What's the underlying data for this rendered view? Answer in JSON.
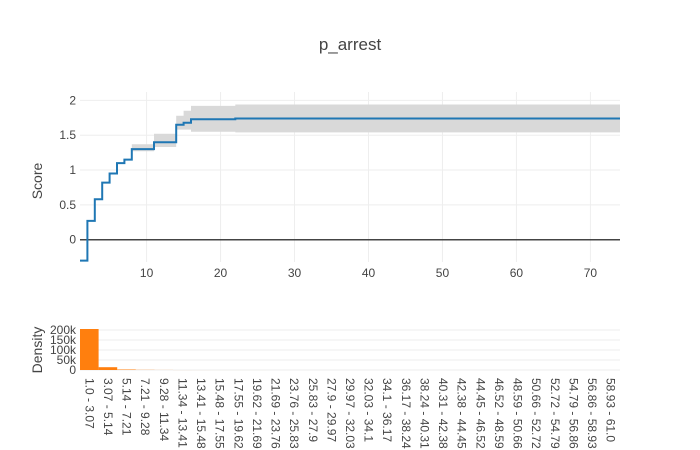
{
  "chart_data": [
    {
      "type": "line",
      "title": "p_arrest",
      "xlabel": "",
      "ylabel": "Score",
      "xlim": [
        1,
        74
      ],
      "ylim": [
        -0.32,
        2.12
      ],
      "x_ticks": [
        10,
        20,
        30,
        40,
        50,
        60,
        70
      ],
      "y_ticks": [
        0,
        0.5,
        1,
        1.5,
        2
      ],
      "y_tick_labels": [
        "0",
        "0.5",
        "1",
        "1.5",
        "2"
      ],
      "grid": true,
      "colors": {
        "line": "#1f77b4",
        "band": "#d9d9d9",
        "zero_line": "#444444"
      },
      "series": [
        {
          "step": "post",
          "x": [
            1,
            2,
            3,
            4,
            5,
            6,
            7,
            8,
            11,
            14,
            15,
            16,
            22,
            74
          ],
          "y": [
            -0.3,
            0.27,
            0.58,
            0.82,
            0.95,
            1.1,
            1.15,
            1.3,
            1.4,
            1.65,
            1.68,
            1.73,
            1.74,
            1.74
          ],
          "lower": [
            -0.3,
            0.27,
            0.58,
            0.82,
            0.95,
            1.1,
            1.15,
            1.27,
            1.33,
            1.58,
            1.58,
            1.55,
            1.54,
            1.54
          ],
          "upper": [
            -0.3,
            0.27,
            0.58,
            0.82,
            0.95,
            1.1,
            1.15,
            1.37,
            1.52,
            1.78,
            1.85,
            1.92,
            1.94,
            1.94
          ]
        }
      ]
    },
    {
      "type": "bar",
      "xlabel": "",
      "ylabel": "Density",
      "ylim": [
        0,
        220000
      ],
      "y_ticks": [
        0,
        50000,
        100000,
        150000,
        200000
      ],
      "y_tick_labels": [
        "0",
        "50k",
        "100k",
        "150k",
        "200k"
      ],
      "colors": {
        "bar": "#ff7f0e"
      },
      "categories": [
        "1.0 - 3.07",
        "3.07 - 5.14",
        "5.14 - 7.21",
        "7.21 - 9.28",
        "9.28 - 11.34",
        "11.34 - 13.41",
        "13.41 - 15.48",
        "15.48 - 17.55",
        "17.55 - 19.62",
        "19.62 - 21.69",
        "21.69 - 23.76",
        "23.76 - 25.83",
        "25.83 - 27.9",
        "27.9 - 29.97",
        "29.97 - 32.03",
        "32.03 - 34.1",
        "34.1 - 36.17",
        "36.17 - 38.24",
        "38.24 - 40.31",
        "40.31 - 42.38",
        "42.38 - 44.45",
        "44.45 - 46.52",
        "46.52 - 48.59",
        "48.59 - 50.66",
        "50.66 - 52.72",
        "52.72 - 54.79",
        "54.79 - 56.86",
        "56.86 - 58.93",
        "58.93 - 61.0"
      ],
      "values": [
        205000,
        14000,
        2500,
        800,
        300,
        150,
        100,
        60,
        40,
        30,
        20,
        15,
        10,
        8,
        6,
        5,
        4,
        3,
        3,
        2,
        2,
        2,
        1,
        1,
        1,
        1,
        1,
        1,
        1
      ]
    }
  ]
}
